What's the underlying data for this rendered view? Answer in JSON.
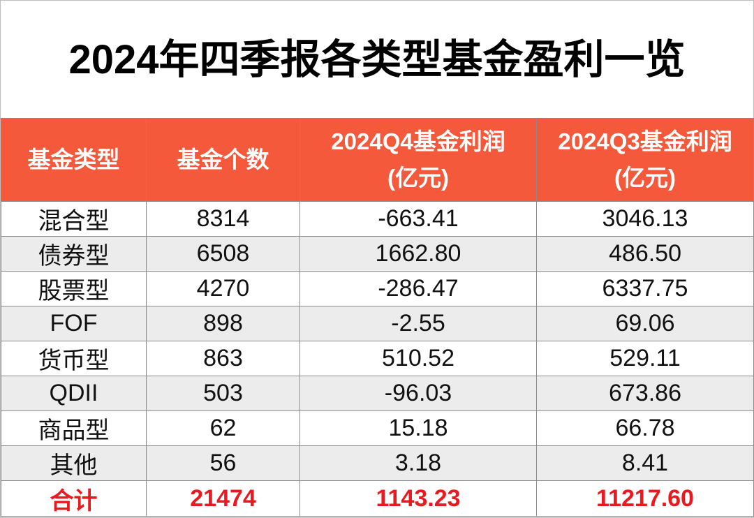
{
  "title": "2024年四季报各类型基金盈利一览",
  "table": {
    "columns": [
      "基金类型",
      "基金个数",
      "2024Q4基金利润\n(亿元)",
      "2024Q3基金利润\n(亿元)"
    ],
    "rows": [
      [
        "混合型",
        "8314",
        "-663.41",
        "3046.13"
      ],
      [
        "债券型",
        "6508",
        "1662.80",
        "486.50"
      ],
      [
        "股票型",
        "4270",
        "-286.47",
        "6337.75"
      ],
      [
        "FOF",
        "898",
        "-2.55",
        "69.06"
      ],
      [
        "货币型",
        "863",
        "510.52",
        "529.11"
      ],
      [
        "QDII",
        "503",
        "-96.03",
        "673.86"
      ],
      [
        "商品型",
        "62",
        "15.18",
        "66.78"
      ],
      [
        "其他",
        "56",
        "3.18",
        "8.41"
      ]
    ],
    "total": [
      "合计",
      "21474",
      "1143.23",
      "11217.60"
    ]
  }
}
